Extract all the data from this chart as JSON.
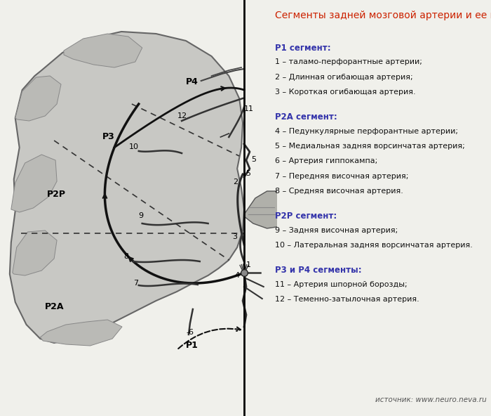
{
  "title": "Сегменты задней мозговой артерии и ее ветви",
  "title_color": "#cc2200",
  "title_fontsize": 10,
  "bg_color": "#f0f0eb",
  "text_color_heading": "#3333aa",
  "text_color_body": "#111111",
  "source_text": "источник: www.neuro.neva.ru",
  "sections": [
    {
      "heading": "Р1 сегмент:",
      "items": [
        "1 – таламо-перфорантные артерии;",
        "2 – Длинная огибающая артерия;",
        "3 – Короткая огибающая артерия."
      ]
    },
    {
      "heading": "Р2А сегмент:",
      "items": [
        "4 – Педункулярные перфорантные артерии;",
        "5 – Медиальная задняя ворсинчатая артерия;",
        "6 – Артерия гиппокампа;",
        "7 – Передняя височная артерия;",
        "8 – Средняя височная артерия."
      ]
    },
    {
      "heading": "Р2Р сегмент:",
      "items": [
        "9 – Задняя височная артерия;",
        "10 – Латеральная задняя ворсинчатая артерия."
      ]
    },
    {
      "heading": "Р3 и Р4 сегменты:",
      "items": [
        "11 – Артерия шпорной борозды;",
        "12 – Теменно-затылочная артерия."
      ]
    }
  ],
  "line_color": "#111111",
  "dashed_color": "#111111"
}
